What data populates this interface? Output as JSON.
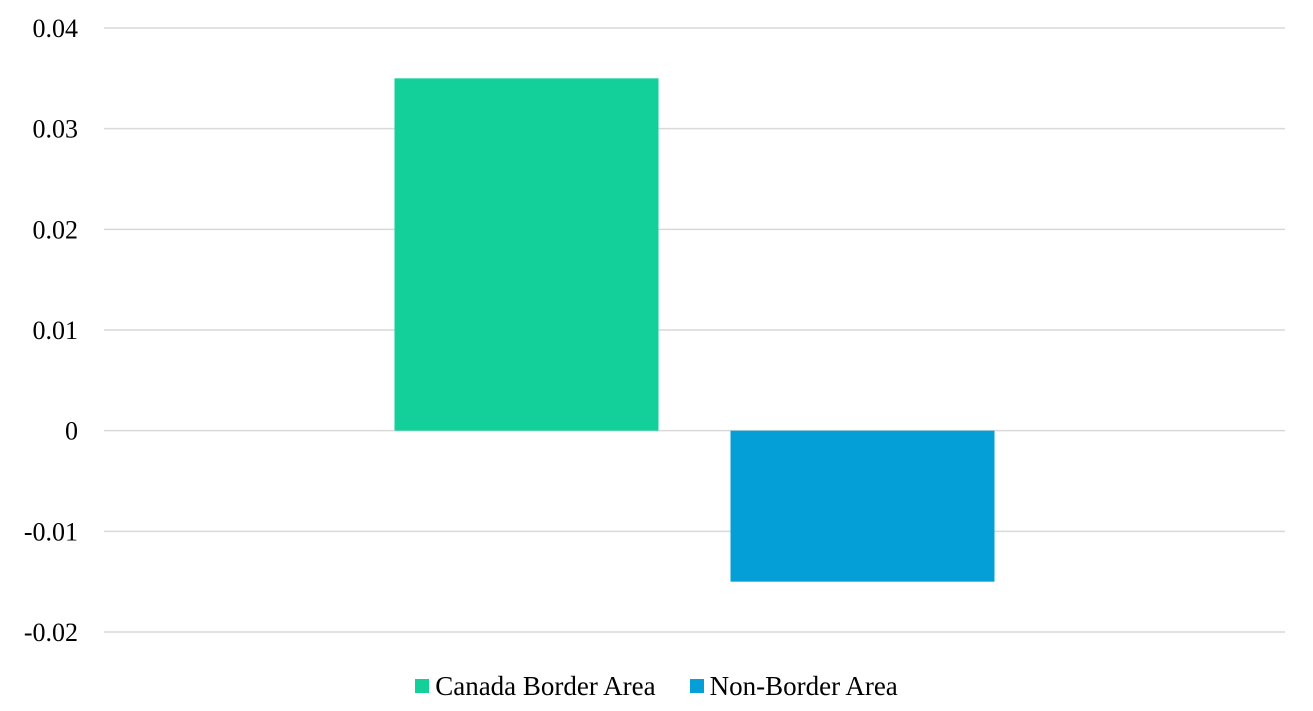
{
  "chart_data": {
    "type": "bar",
    "title": "",
    "xlabel": "",
    "ylabel": "",
    "categories": [
      ""
    ],
    "series": [
      {
        "name": "Canada Border Area",
        "values": [
          0.035
        ],
        "color": "#13CF9A"
      },
      {
        "name": "Non-Border Area",
        "values": [
          -0.015
        ],
        "color": "#059FD8"
      }
    ],
    "ylim": [
      -0.02,
      0.04
    ],
    "yticks": [
      0.04,
      0.03,
      0.02,
      0.01,
      0,
      -0.01,
      -0.02
    ],
    "ytick_labels": [
      "0.04",
      "0.03",
      "0.02",
      "0.01",
      "0",
      "-0.01",
      "-0.02"
    ],
    "grid": true,
    "legend_position": "bottom"
  }
}
